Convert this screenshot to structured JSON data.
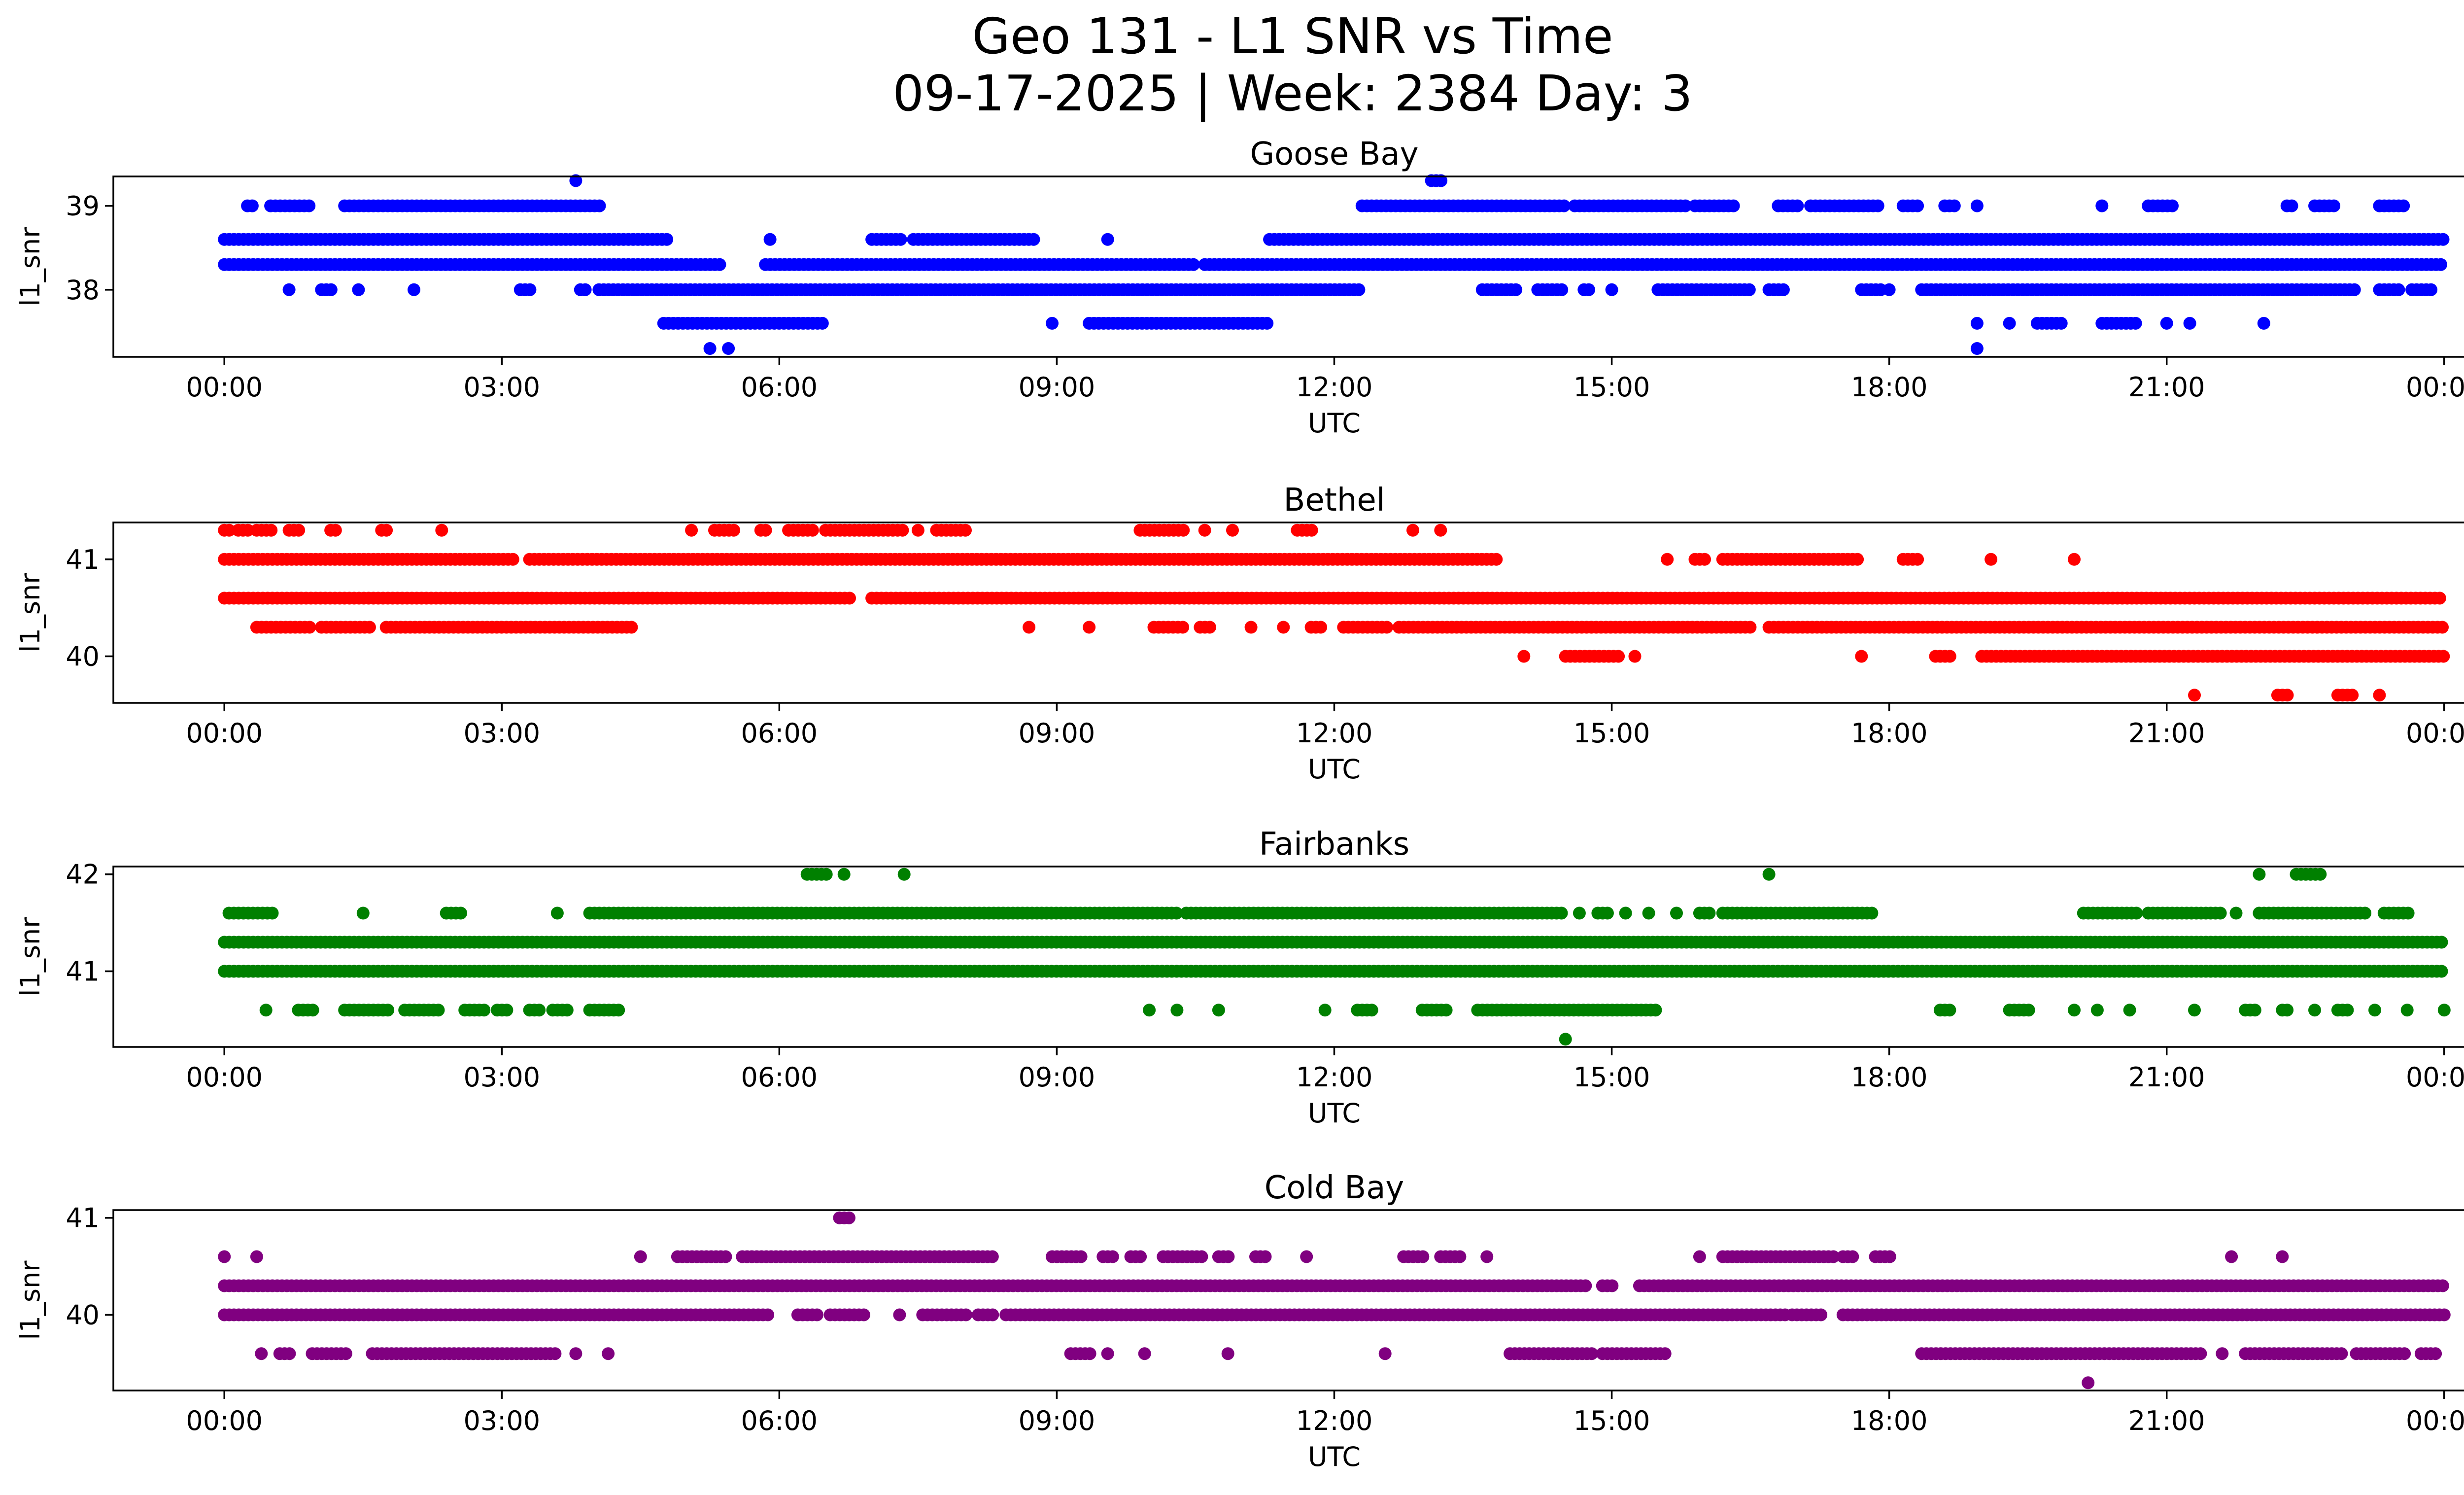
{
  "figure": {
    "title_line1": "Geo 131 - L1 SNR vs Time",
    "title_line2": "09-17-2025 | Week: 2384 Day: 3"
  },
  "chart_data": [
    {
      "type": "scatter",
      "title": "Goose Bay",
      "xlabel": "UTC",
      "ylabel": "l1_snr",
      "color": "#0000ff",
      "xlim": [
        -1.2,
        25.2
      ],
      "ylim": [
        37.2,
        39.35
      ],
      "xticks": [
        0,
        3,
        6,
        9,
        12,
        15,
        18,
        21,
        24
      ],
      "xtick_labels": [
        "00:00",
        "03:00",
        "06:00",
        "09:00",
        "12:00",
        "15:00",
        "18:00",
        "21:00",
        "00:00"
      ],
      "yticks": [
        38,
        39
      ],
      "ytick_labels": [
        "38",
        "39"
      ],
      "series": [
        {
          "y": 39.3,
          "runs": [
            [
              3.8,
              3.85
            ],
            [
              13.05,
              13.2
            ]
          ]
        },
        {
          "y": 39.0,
          "runs": [
            [
              0.25,
              0.35
            ],
            [
              0.5,
              0.95
            ],
            [
              1.3,
              4.1
            ],
            [
              12.3,
              14.5
            ],
            [
              14.6,
              15.8
            ],
            [
              15.9,
              16.35
            ],
            [
              16.8,
              17.05
            ],
            [
              17.15,
              17.9
            ],
            [
              18.15,
              18.35
            ],
            [
              18.6,
              18.75
            ],
            [
              18.95,
              19.0
            ],
            [
              20.3,
              20.35
            ],
            [
              20.8,
              21.1
            ],
            [
              22.3,
              22.4
            ],
            [
              22.6,
              22.85
            ],
            [
              23.3,
              23.6
            ]
          ]
        },
        {
          "y": 38.6,
          "runs": [
            [
              0.0,
              4.8
            ],
            [
              5.9,
              5.95
            ],
            [
              7.0,
              7.35
            ],
            [
              7.45,
              8.8
            ],
            [
              9.55,
              9.6
            ],
            [
              11.3,
              24.0
            ]
          ]
        },
        {
          "y": 38.3,
          "runs": [
            [
              0.0,
              5.4
            ],
            [
              5.85,
              10.5
            ],
            [
              10.6,
              24.0
            ]
          ]
        },
        {
          "y": 38.0,
          "runs": [
            [
              0.7,
              0.75
            ],
            [
              1.05,
              1.2
            ],
            [
              1.45,
              1.5
            ],
            [
              2.05,
              2.1
            ],
            [
              3.2,
              3.35
            ],
            [
              3.85,
              3.95
            ],
            [
              4.05,
              12.3
            ],
            [
              13.6,
              14.0
            ],
            [
              14.2,
              14.5
            ],
            [
              14.7,
              14.8
            ],
            [
              15.0,
              15.05
            ],
            [
              15.5,
              16.5
            ],
            [
              16.7,
              16.9
            ],
            [
              17.7,
              17.95
            ],
            [
              18.0,
              18.05
            ],
            [
              18.35,
              23.05
            ],
            [
              23.3,
              23.55
            ],
            [
              23.65,
              23.9
            ]
          ]
        },
        {
          "y": 37.6,
          "runs": [
            [
              4.75,
              6.5
            ],
            [
              8.95,
              9.0
            ],
            [
              9.35,
              11.3
            ],
            [
              18.95,
              19.0
            ],
            [
              19.3,
              19.35
            ],
            [
              19.6,
              19.9
            ],
            [
              20.3,
              20.7
            ],
            [
              21.0,
              21.05
            ],
            [
              21.25,
              21.3
            ],
            [
              22.05,
              22.1
            ]
          ]
        },
        {
          "y": 37.3,
          "runs": [
            [
              5.25,
              5.3
            ],
            [
              5.45,
              5.5
            ],
            [
              18.95,
              19.0
            ]
          ]
        }
      ]
    },
    {
      "type": "scatter",
      "title": "Bethel",
      "xlabel": "UTC",
      "ylabel": "l1_snr",
      "color": "#ff0000",
      "xlim": [
        -1.2,
        25.2
      ],
      "ylim": [
        39.52,
        41.38
      ],
      "xticks": [
        0,
        3,
        6,
        9,
        12,
        15,
        18,
        21,
        24
      ],
      "xtick_labels": [
        "00:00",
        "03:00",
        "06:00",
        "09:00",
        "12:00",
        "15:00",
        "18:00",
        "21:00",
        "00:00"
      ],
      "yticks": [
        40,
        41
      ],
      "ytick_labels": [
        "40",
        "41"
      ],
      "series": [
        {
          "y": 41.3,
          "runs": [
            [
              0.0,
              0.1
            ],
            [
              0.15,
              0.3
            ],
            [
              0.35,
              0.55
            ],
            [
              0.7,
              0.85
            ],
            [
              1.15,
              1.25
            ],
            [
              1.7,
              1.8
            ],
            [
              2.35,
              2.4
            ],
            [
              5.05,
              5.1
            ],
            [
              5.3,
              5.55
            ],
            [
              5.8,
              5.9
            ],
            [
              6.1,
              6.4
            ],
            [
              6.5,
              7.35
            ],
            [
              7.5,
              7.55
            ],
            [
              7.7,
              8.05
            ],
            [
              9.9,
              10.4
            ],
            [
              10.6,
              10.65
            ],
            [
              10.9,
              10.95
            ],
            [
              11.6,
              11.8
            ],
            [
              12.85,
              12.9
            ],
            [
              13.15,
              13.2
            ]
          ]
        },
        {
          "y": 41.0,
          "runs": [
            [
              0.0,
              3.15
            ],
            [
              3.3,
              13.8
            ],
            [
              15.6,
              15.65
            ],
            [
              15.9,
              16.05
            ],
            [
              16.2,
              17.7
            ],
            [
              18.15,
              18.35
            ],
            [
              19.1,
              19.15
            ],
            [
              20.0,
              20.05
            ]
          ]
        },
        {
          "y": 40.6,
          "runs": [
            [
              0.0,
              6.8
            ],
            [
              7.0,
              24.0
            ]
          ]
        },
        {
          "y": 40.3,
          "runs": [
            [
              0.35,
              0.95
            ],
            [
              1.05,
              1.6
            ],
            [
              1.75,
              4.45
            ],
            [
              8.7,
              8.75
            ],
            [
              9.35,
              9.4
            ],
            [
              10.05,
              10.4
            ],
            [
              10.55,
              10.7
            ],
            [
              11.1,
              11.15
            ],
            [
              11.45,
              11.5
            ],
            [
              11.75,
              11.9
            ],
            [
              12.1,
              12.6
            ],
            [
              12.7,
              16.5
            ],
            [
              16.7,
              24.0
            ]
          ]
        },
        {
          "y": 40.0,
          "runs": [
            [
              14.05,
              14.1
            ],
            [
              14.5,
              15.1
            ],
            [
              15.25,
              15.3
            ],
            [
              17.7,
              17.75
            ],
            [
              18.5,
              18.7
            ],
            [
              19.0,
              24.0
            ]
          ]
        },
        {
          "y": 39.6,
          "runs": [
            [
              21.3,
              21.35
            ],
            [
              22.2,
              22.35
            ],
            [
              22.85,
              23.05
            ],
            [
              23.3,
              23.35
            ]
          ]
        }
      ]
    },
    {
      "type": "scatter",
      "title": "Fairbanks",
      "xlabel": "UTC",
      "ylabel": "l1_snr",
      "color": "#008000",
      "xlim": [
        -1.2,
        25.2
      ],
      "ylim": [
        40.22,
        42.08
      ],
      "xticks": [
        0,
        3,
        6,
        9,
        12,
        15,
        18,
        21,
        24
      ],
      "xtick_labels": [
        "00:00",
        "03:00",
        "06:00",
        "09:00",
        "12:00",
        "15:00",
        "18:00",
        "21:00",
        "00:00"
      ],
      "yticks": [
        41,
        42
      ],
      "ytick_labels": [
        "41",
        "42"
      ],
      "series": [
        {
          "y": 42.0,
          "runs": [
            [
              6.3,
              6.55
            ],
            [
              6.7,
              6.75
            ],
            [
              7.35,
              7.4
            ],
            [
              16.7,
              16.75
            ],
            [
              22.0,
              22.05
            ],
            [
              22.4,
              22.7
            ]
          ]
        },
        {
          "y": 41.6,
          "runs": [
            [
              0.05,
              0.55
            ],
            [
              1.5,
              1.55
            ],
            [
              2.4,
              2.6
            ],
            [
              3.6,
              3.65
            ],
            [
              3.95,
              10.3
            ],
            [
              10.4,
              14.5
            ],
            [
              14.65,
              14.7
            ],
            [
              14.85,
              15.0
            ],
            [
              15.15,
              15.2
            ],
            [
              15.4,
              15.45
            ],
            [
              15.7,
              15.75
            ],
            [
              15.95,
              16.1
            ],
            [
              16.2,
              17.85
            ],
            [
              20.1,
              20.7
            ],
            [
              20.8,
              21.6
            ],
            [
              21.75,
              21.8
            ],
            [
              22.0,
              23.15
            ],
            [
              23.35,
              23.65
            ]
          ]
        },
        {
          "y": 41.3,
          "runs": [
            [
              0.0,
              24.0
            ]
          ]
        },
        {
          "y": 41.0,
          "runs": [
            [
              0.0,
              24.0
            ]
          ]
        },
        {
          "y": 40.6,
          "runs": [
            [
              0.45,
              0.5
            ],
            [
              0.8,
              1.0
            ],
            [
              1.3,
              1.8
            ],
            [
              1.95,
              2.35
            ],
            [
              2.6,
              2.85
            ],
            [
              2.95,
              3.1
            ],
            [
              3.3,
              3.45
            ],
            [
              3.55,
              3.75
            ],
            [
              3.95,
              4.3
            ],
            [
              10.0,
              10.05
            ],
            [
              10.3,
              10.35
            ],
            [
              10.75,
              10.8
            ],
            [
              11.9,
              11.95
            ],
            [
              12.25,
              12.45
            ],
            [
              12.95,
              13.25
            ],
            [
              13.55,
              15.5
            ],
            [
              18.55,
              18.7
            ],
            [
              19.3,
              19.55
            ],
            [
              20.0,
              20.05
            ],
            [
              20.25,
              20.3
            ],
            [
              20.6,
              20.65
            ],
            [
              21.3,
              21.35
            ],
            [
              21.85,
              22.0
            ],
            [
              22.25,
              22.35
            ],
            [
              22.6,
              22.65
            ],
            [
              22.85,
              23.0
            ],
            [
              23.25,
              23.3
            ],
            [
              23.6,
              23.65
            ],
            [
              24.0,
              24.0
            ]
          ]
        },
        {
          "y": 40.3,
          "runs": [
            [
              14.5,
              14.55
            ]
          ]
        }
      ]
    },
    {
      "type": "scatter",
      "title": "Cold Bay",
      "xlabel": "UTC",
      "ylabel": "l1_snr",
      "color": "#800080",
      "xlim": [
        -1.2,
        25.2
      ],
      "ylim": [
        39.22,
        41.08
      ],
      "xticks": [
        0,
        3,
        6,
        9,
        12,
        15,
        18,
        21,
        24
      ],
      "xtick_labels": [
        "00:00",
        "03:00",
        "06:00",
        "09:00",
        "12:00",
        "15:00",
        "18:00",
        "21:00",
        "00:00"
      ],
      "yticks": [
        40,
        41
      ],
      "ytick_labels": [
        "40",
        "41"
      ],
      "series": [
        {
          "y": 41.0,
          "runs": [
            [
              6.65,
              6.8
            ]
          ]
        },
        {
          "y": 40.6,
          "runs": [
            [
              0.0,
              0.05
            ],
            [
              0.35,
              0.4
            ],
            [
              4.5,
              4.55
            ],
            [
              4.9,
              5.45
            ],
            [
              5.6,
              8.35
            ],
            [
              8.95,
              9.3
            ],
            [
              9.5,
              9.65
            ],
            [
              9.8,
              9.95
            ],
            [
              10.15,
              10.6
            ],
            [
              10.75,
              10.9
            ],
            [
              11.15,
              11.3
            ],
            [
              11.7,
              11.75
            ],
            [
              12.75,
              13.0
            ],
            [
              13.15,
              13.4
            ],
            [
              13.65,
              13.7
            ],
            [
              15.95,
              16.0
            ],
            [
              16.2,
              17.4
            ],
            [
              17.5,
              17.65
            ],
            [
              17.85,
              18.05
            ],
            [
              21.7,
              21.75
            ],
            [
              22.25,
              22.3
            ]
          ]
        },
        {
          "y": 40.3,
          "runs": [
            [
              0.0,
              14.75
            ],
            [
              14.9,
              15.05
            ],
            [
              15.3,
              24.0
            ]
          ]
        },
        {
          "y": 40.0,
          "runs": [
            [
              0.0,
              5.9
            ],
            [
              6.2,
              6.45
            ],
            [
              6.55,
              6.95
            ],
            [
              7.3,
              7.35
            ],
            [
              7.55,
              8.05
            ],
            [
              8.15,
              8.35
            ],
            [
              8.45,
              16.9
            ],
            [
              16.95,
              17.3
            ],
            [
              17.5,
              24.0
            ]
          ]
        },
        {
          "y": 39.6,
          "runs": [
            [
              0.4,
              0.45
            ],
            [
              0.6,
              0.75
            ],
            [
              0.95,
              1.35
            ],
            [
              1.6,
              3.6
            ],
            [
              3.8,
              3.85
            ],
            [
              4.15,
              4.2
            ],
            [
              9.15,
              9.4
            ],
            [
              9.55,
              9.6
            ],
            [
              9.95,
              10.0
            ],
            [
              10.85,
              10.9
            ],
            [
              12.55,
              12.6
            ],
            [
              13.9,
              14.8
            ],
            [
              14.9,
              15.6
            ],
            [
              18.35,
              21.4
            ],
            [
              21.6,
              21.65
            ],
            [
              21.85,
              22.9
            ],
            [
              23.05,
              23.6
            ],
            [
              23.75,
              23.95
            ]
          ]
        },
        {
          "y": 39.3,
          "runs": [
            [
              20.15,
              20.2
            ]
          ]
        }
      ]
    }
  ]
}
